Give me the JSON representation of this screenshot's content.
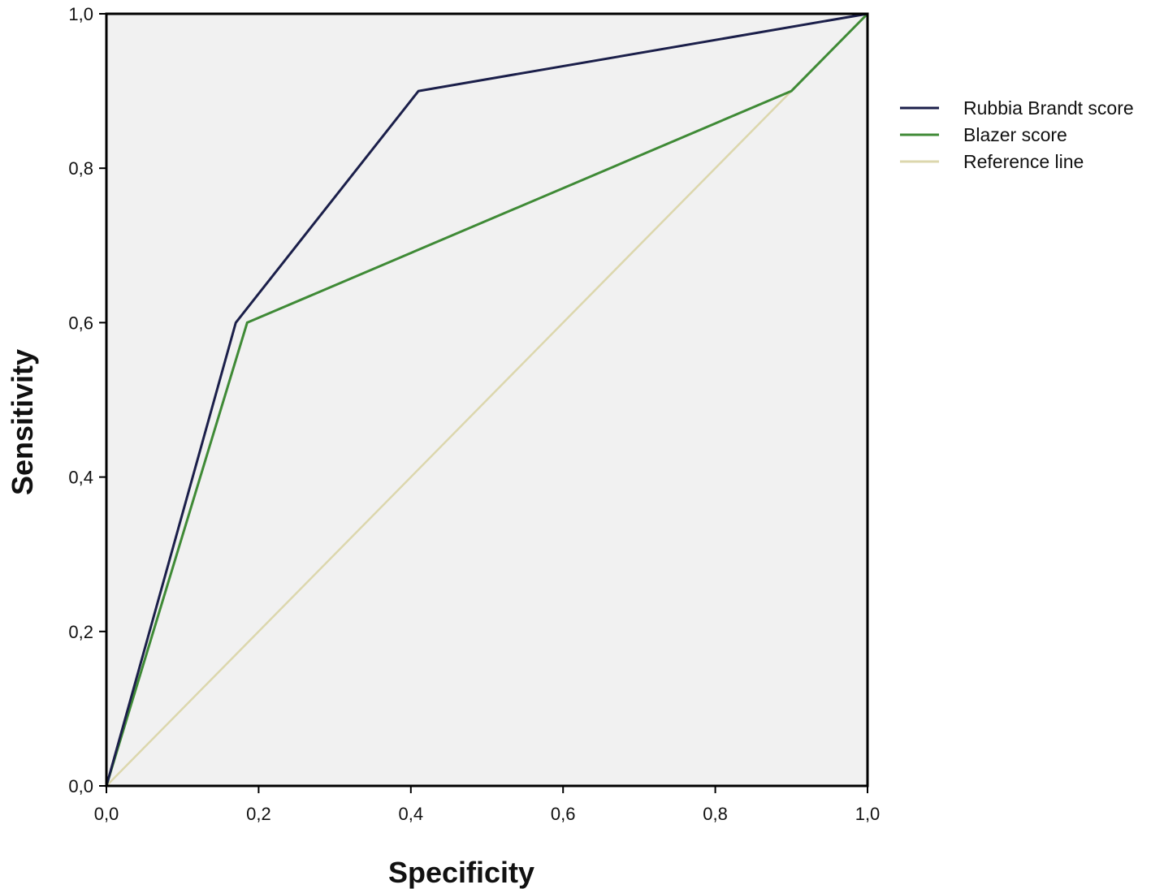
{
  "chart_data": {
    "type": "line",
    "xlabel": "Specificity",
    "ylabel": "Sensitivity",
    "xlim": [
      0,
      1
    ],
    "ylim": [
      0,
      1
    ],
    "x_ticks": [
      "0,0",
      "0,2",
      "0,4",
      "0,6",
      "0,8",
      "1,0"
    ],
    "y_ticks": [
      "0,0",
      "0,2",
      "0,4",
      "0,6",
      "0,8",
      "1,0"
    ],
    "grid": false,
    "legend_position": "right",
    "background": "#f1f1f1",
    "series": [
      {
        "name": "Rubbia Brandt score",
        "color": "#1b1f4a",
        "x": [
          0,
          0.17,
          0.41,
          1.0
        ],
        "y": [
          0,
          0.6,
          0.9,
          1.0
        ]
      },
      {
        "name": "Blazer score",
        "color": "#3f8a36",
        "x": [
          0,
          0.185,
          0.9,
          1.0
        ],
        "y": [
          0,
          0.6,
          0.9,
          1.0
        ]
      },
      {
        "name": "Reference line",
        "color": "#dcd7ad",
        "x": [
          0,
          1
        ],
        "y": [
          0,
          1
        ]
      }
    ]
  }
}
